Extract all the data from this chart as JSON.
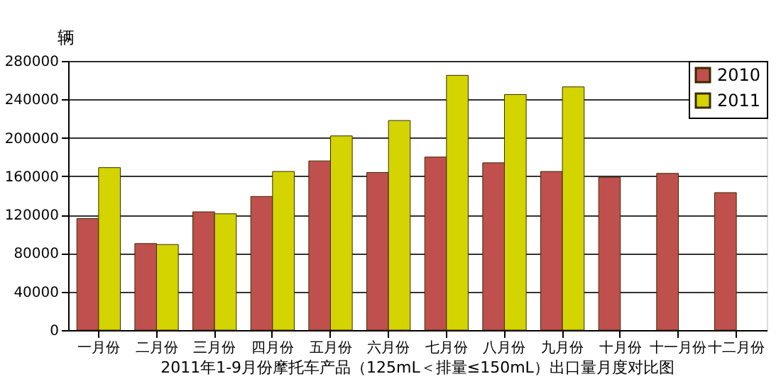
{
  "chart_data": {
    "type": "bar",
    "title": "2011年1-9月份摩托车产品（125mL＜排量≤150mL）出口量月度对比图",
    "ylabel": "辆",
    "categories": [
      "一月份",
      "二月份",
      "三月份",
      "四月份",
      "五月份",
      "六月份",
      "七月份",
      "八月份",
      "九月份",
      "十月份",
      "十一月份",
      "十二月份"
    ],
    "series": [
      {
        "name": "2010",
        "color": "#c0504d",
        "values": [
          116000,
          90000,
          123000,
          139000,
          176000,
          164000,
          180000,
          174000,
          165000,
          159000,
          163000,
          143000
        ]
      },
      {
        "name": "2011",
        "color": "#d4d400",
        "values": [
          169000,
          89000,
          121000,
          165000,
          202000,
          218000,
          265000,
          245000,
          253000,
          null,
          null,
          null
        ]
      }
    ],
    "ylim": [
      0,
      280000
    ],
    "yticks": [
      0,
      40000,
      80000,
      120000,
      160000,
      200000,
      240000,
      280000
    ],
    "grid": "y",
    "legend": "top right"
  }
}
